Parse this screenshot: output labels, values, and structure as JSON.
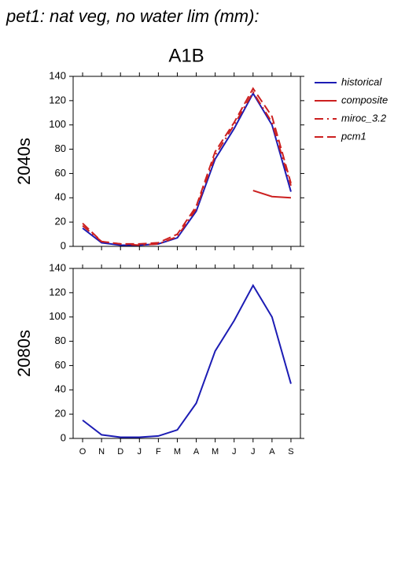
{
  "chart_data": [
    {
      "type": "line",
      "title": "pet1: nat veg, no water lim (mm):",
      "subtitle": "A1B",
      "ylabel": "2040s",
      "ylim": [
        0,
        140
      ],
      "yticks": [
        0,
        20,
        40,
        60,
        80,
        100,
        120,
        140
      ],
      "series": [
        {
          "name": "historical",
          "color": "#1c1cb4",
          "linestyle": "solid",
          "values": [
            15,
            3,
            1,
            1,
            2,
            7,
            29,
            72,
            97,
            126,
            100,
            45
          ]
        },
        {
          "name": "composite",
          "color": "#cc2020",
          "linestyle": "solid",
          "values": [
            null,
            null,
            null,
            null,
            null,
            null,
            null,
            null,
            null,
            46,
            41,
            40
          ]
        },
        {
          "name": "miroc_3.2",
          "color": "#cc2020",
          "linestyle": "dashdot",
          "values": [
            17,
            4,
            2,
            1,
            2,
            8,
            31,
            75,
            100,
            127,
            102,
            50
          ]
        },
        {
          "name": "pcm1",
          "color": "#cc2020",
          "linestyle": "dashed",
          "values": [
            19,
            4,
            2,
            2,
            3,
            10,
            33,
            78,
            102,
            130,
            107,
            52
          ]
        }
      ]
    },
    {
      "type": "line",
      "ylabel": "2080s",
      "categories": [
        "O",
        "N",
        "D",
        "J",
        "F",
        "M",
        "A",
        "M",
        "J",
        "J",
        "A",
        "S"
      ],
      "ylim": [
        0,
        140
      ],
      "yticks": [
        0,
        20,
        40,
        60,
        80,
        100,
        120,
        140
      ],
      "series": [
        {
          "name": "historical",
          "color": "#1c1cb4",
          "linestyle": "solid",
          "values": [
            15,
            3,
            1,
            1,
            2,
            7,
            29,
            72,
            97,
            126,
            100,
            45
          ]
        }
      ]
    }
  ]
}
